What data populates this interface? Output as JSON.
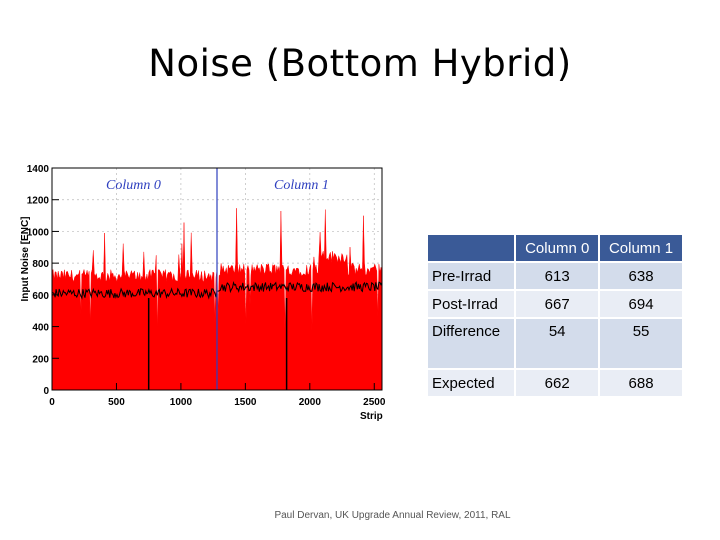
{
  "slide": {
    "title": "Noise (Bottom Hybrid)",
    "footer": "Paul Dervan, UK Upgrade Annual Review, 2011, RAL"
  },
  "chart_data": {
    "type": "histogram",
    "title": "",
    "xlabel": "Strip",
    "ylabel": "Input Noise [ENC]",
    "xlim": [
      0,
      2560
    ],
    "ylim": [
      0,
      1400
    ],
    "x_ticks": [
      0,
      500,
      1000,
      1500,
      2000,
      2500
    ],
    "y_ticks": [
      0,
      200,
      400,
      600,
      800,
      1000,
      1200,
      1400
    ],
    "column_divider_x": 1280,
    "annotations": [
      "Column 0",
      "Column 1"
    ],
    "series": [
      {
        "color": "#ff0000",
        "fill": true,
        "level_col0": 720,
        "level_col1": 760
      },
      {
        "color": "#000000",
        "fill": false,
        "level_col0": 610,
        "level_col1": 650
      }
    ]
  },
  "table": {
    "columns": [
      "",
      "Column 0",
      "Column 1"
    ],
    "rows": [
      {
        "label": "Pre-Irrad",
        "c0": "613",
        "c1": "638"
      },
      {
        "label": "Post-Irrad",
        "c0": "667",
        "c1": "694"
      },
      {
        "label": "Difference",
        "c0": "54",
        "c1": "55"
      },
      {
        "label": "Expected",
        "c0": "662",
        "c1": "688"
      }
    ]
  },
  "colors": {
    "accent": "#2e3fbf",
    "table_header": "#3a5a97",
    "post_series": "#ff0000"
  }
}
